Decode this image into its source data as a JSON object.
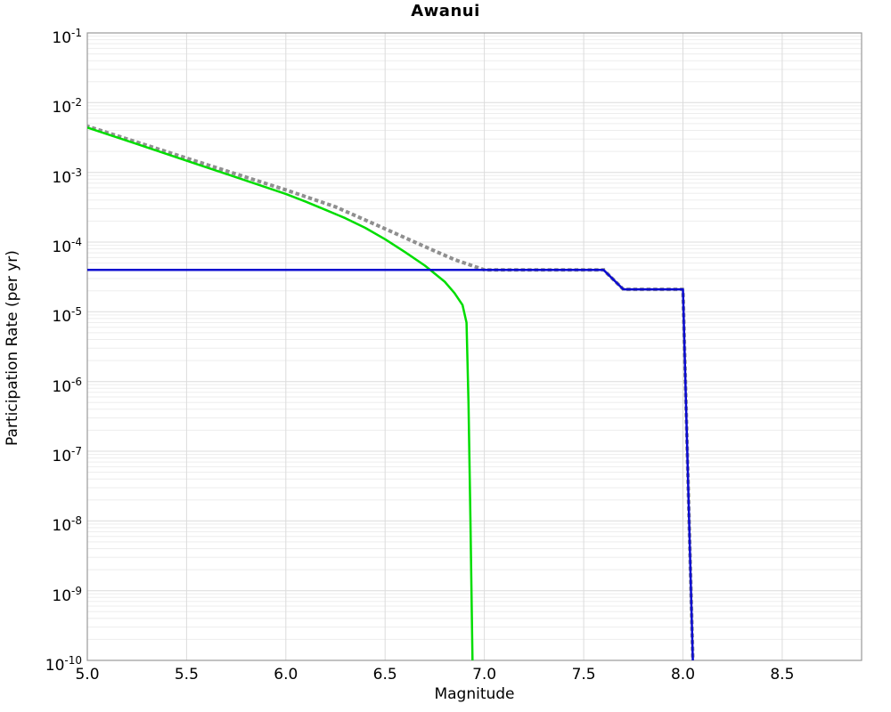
{
  "title": "Awanui",
  "axes": {
    "xlabel": "Magnitude",
    "ylabel": "Participation Rate (per yr)",
    "x_tick_values": [
      5.0,
      5.5,
      6.0,
      6.5,
      7.0,
      7.5,
      8.0,
      8.5
    ],
    "x_tick_labels": [
      "5.0",
      "5.5",
      "6.0",
      "6.5",
      "7.0",
      "7.5",
      "8.0",
      "8.5"
    ],
    "y_tick_base": "10",
    "y_tick_exponents": [
      "-1",
      "-2",
      "-3",
      "-4",
      "-5",
      "-6",
      "-7",
      "-8",
      "-9",
      "-10"
    ]
  },
  "style": {
    "background": "#ffffff",
    "minor_grid_color": "#ededed",
    "major_grid_color": "#dcdcdc",
    "vertical_grid_color": "#dcdcdc",
    "spine_color": "#9a9a9a",
    "text_color": "#000000"
  },
  "chart_data": {
    "type": "line",
    "title": "Awanui",
    "xlabel": "Magnitude",
    "ylabel": "Participation Rate (per yr)",
    "x_scale": "linear",
    "y_scale": "log",
    "grid": "on",
    "legend": "none",
    "xlim": [
      5.0,
      8.9
    ],
    "ylim": [
      1e-10,
      0.1
    ],
    "series": [
      {
        "name": "gray-dotted-curve",
        "color": "#8f8f8f",
        "style": "dotted",
        "width": 4,
        "points": [
          [
            5.0,
            0.0046
          ],
          [
            5.5,
            0.0016
          ],
          [
            6.0,
            0.00056
          ],
          [
            6.25,
            0.00032
          ],
          [
            6.5,
            0.000155
          ],
          [
            6.7,
            8.6e-05
          ],
          [
            6.85,
            5.6e-05
          ],
          [
            7.0,
            4e-05
          ],
          [
            7.6,
            4e-05
          ],
          [
            7.7,
            2.1e-05
          ],
          [
            8.0,
            2.1e-05
          ],
          [
            8.05,
            1e-10
          ]
        ]
      },
      {
        "name": "green-solid-curve",
        "color": "#00dd00",
        "style": "solid",
        "width": 2.5,
        "points": [
          [
            5.0,
            0.0044
          ],
          [
            5.25,
            0.00255
          ],
          [
            5.5,
            0.00147
          ],
          [
            5.75,
            0.00085
          ],
          [
            6.0,
            0.00049
          ],
          [
            6.1,
            0.00038
          ],
          [
            6.2,
            0.00029
          ],
          [
            6.3,
            0.00022
          ],
          [
            6.4,
            0.00016
          ],
          [
            6.5,
            0.00011
          ],
          [
            6.6,
            7.2e-05
          ],
          [
            6.7,
            4.6e-05
          ],
          [
            6.8,
            2.7e-05
          ],
          [
            6.85,
            1.85e-05
          ],
          [
            6.89,
            1.25e-05
          ],
          [
            6.91,
            7e-06
          ],
          [
            6.92,
            5e-07
          ],
          [
            6.93,
            1e-08
          ],
          [
            6.94,
            1e-10
          ]
        ]
      },
      {
        "name": "blue-solid-curve",
        "color": "#0b0bd0",
        "style": "solid",
        "width": 2.5,
        "points": [
          [
            5.0,
            4e-05
          ],
          [
            7.6,
            4e-05
          ],
          [
            7.7,
            2.1e-05
          ],
          [
            8.0,
            2.1e-05
          ],
          [
            8.05,
            1e-10
          ]
        ]
      }
    ]
  }
}
